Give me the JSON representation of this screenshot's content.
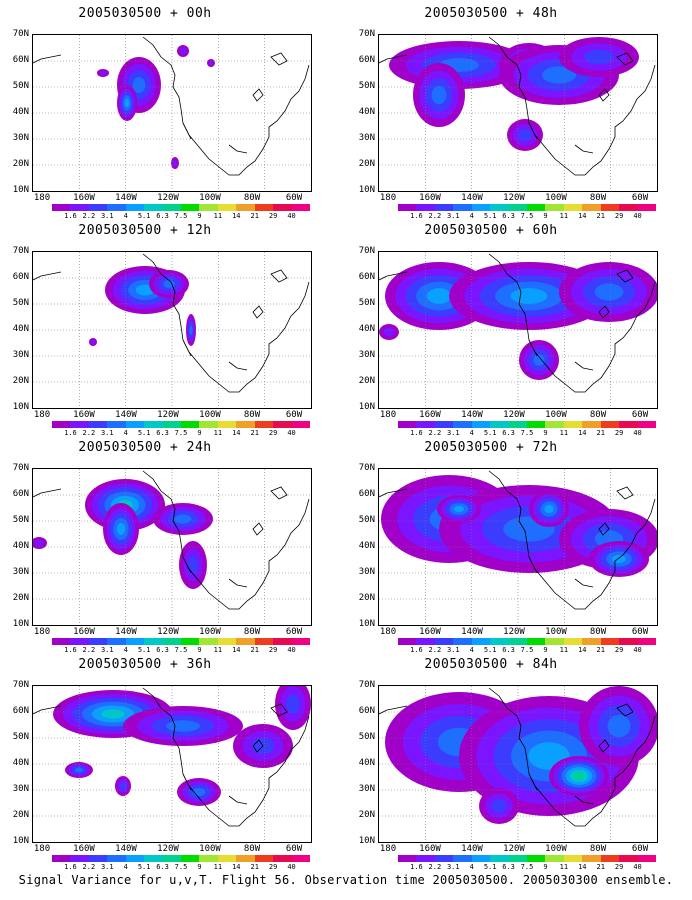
{
  "caption": "Signal Variance for u,v,T. Flight 56. Observation time 2005030500. 2005030300 ensemble.",
  "lat_labels": [
    "70N",
    "60N",
    "50N",
    "40N",
    "30N",
    "20N",
    "10N"
  ],
  "lon_labels": [
    "180",
    "160W",
    "140W",
    "120W",
    "100W",
    "80W",
    "60W"
  ],
  "colorbar": {
    "labels": [
      "1.6",
      "2.2",
      "3.1",
      "4",
      "5.1",
      "6.3",
      "7.5",
      "9",
      "11",
      "14",
      "21",
      "29",
      "40"
    ],
    "colors": [
      "#a000c8",
      "#7b14ff",
      "#3c3cff",
      "#1e6eff",
      "#0aa0ff",
      "#00c8c8",
      "#00d28c",
      "#00dc00",
      "#a0e632",
      "#e6dc32",
      "#f0a028",
      "#f03c1e",
      "#e60a50",
      "#f00082"
    ]
  },
  "panels": [
    {
      "id": "00h",
      "title": "2005030500 + 00h"
    },
    {
      "id": "12h",
      "title": "2005030500 + 12h"
    },
    {
      "id": "24h",
      "title": "2005030500 + 24h"
    },
    {
      "id": "36h",
      "title": "2005030500 + 36h"
    },
    {
      "id": "48h",
      "title": "2005030500 + 48h"
    },
    {
      "id": "60h",
      "title": "2005030500 + 60h"
    },
    {
      "id": "72h",
      "title": "2005030500 + 72h"
    },
    {
      "id": "84h",
      "title": "2005030500 + 84h"
    }
  ]
}
